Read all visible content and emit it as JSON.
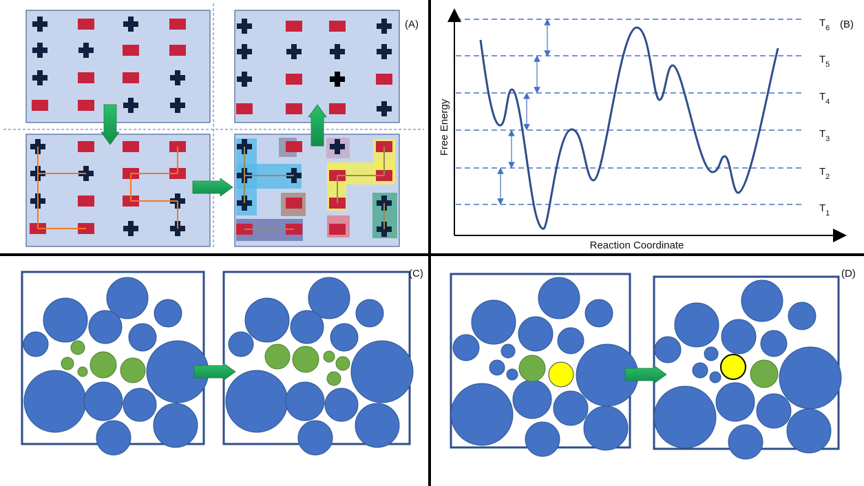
{
  "panels": {
    "a": {
      "label": "(A)"
    },
    "b": {
      "label": "(B)",
      "y_axis": "Free Energy",
      "x_axis": "Reaction Coordinate",
      "level_symbol": "T",
      "levels": [
        "1",
        "2",
        "3",
        "4",
        "5",
        "6"
      ]
    },
    "c": {
      "label": "(C)"
    },
    "d": {
      "label": "(D)"
    }
  }
}
